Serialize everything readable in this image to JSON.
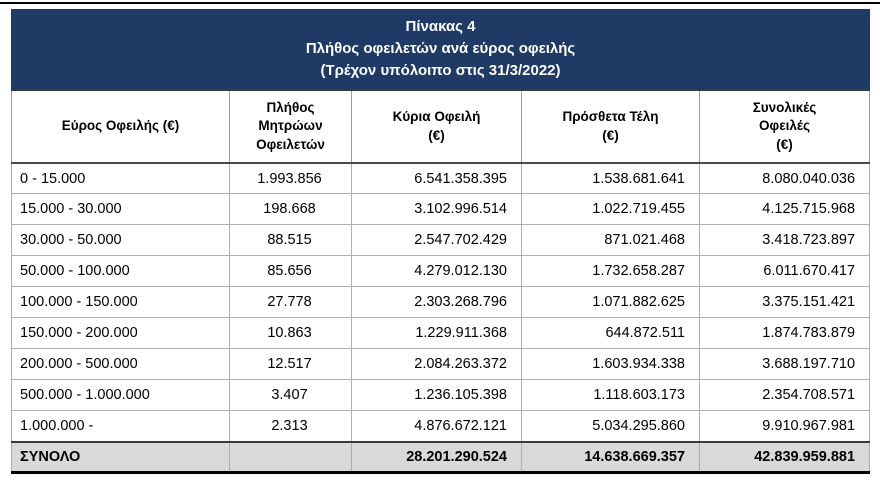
{
  "title": {
    "line1": "Πίνακας 4",
    "line2": "Πλήθος οφειλετών ανά εύρος οφειλής",
    "line3": "(Τρέχον υπόλοιπο στις 31/3/2022)"
  },
  "columns": [
    "Εύρος Οφειλής (€)",
    "Πλήθος\nΜητρώων\nΟφειλετών",
    "Κύρια Οφειλή\n(€)",
    "Πρόσθετα Τέλη\n(€)",
    "Συνολικές\nΟφειλές\n(€)"
  ],
  "rows": [
    [
      "0 - 15.000",
      "1.993.856",
      "6.541.358.395",
      "1.538.681.641",
      "8.080.040.036"
    ],
    [
      "15.000 - 30.000",
      "198.668",
      "3.102.996.514",
      "1.022.719.455",
      "4.125.715.968"
    ],
    [
      "30.000 - 50.000",
      "88.515",
      "2.547.702.429",
      "871.021.468",
      "3.418.723.897"
    ],
    [
      "50.000 - 100.000",
      "85.656",
      "4.279.012.130",
      "1.732.658.287",
      "6.011.670.417"
    ],
    [
      "100.000 - 150.000",
      "27.778",
      "2.303.268.796",
      "1.071.882.625",
      "3.375.151.421"
    ],
    [
      "150.000 - 200.000",
      "10.863",
      "1.229.911.368",
      "644.872.511",
      "1.874.783.879"
    ],
    [
      "200.000 - 500.000",
      "12.517",
      "2.084.263.372",
      "1.603.934.338",
      "3.688.197.710"
    ],
    [
      "500.000 - 1.000.000",
      "3.407",
      "1.236.105.398",
      "1.118.603.173",
      "2.354.708.571"
    ],
    [
      "1.000.000 -",
      "2.313",
      "4.876.672.121",
      "5.034.295.860",
      "9.910.967.981"
    ]
  ],
  "total_row": [
    "ΣΥΝΟΛΟ",
    "",
    "28.201.290.524",
    "14.638.669.357",
    "42.839.959.881"
  ],
  "colors": {
    "header_bg": "#1f3a64",
    "header_text": "#ffffff",
    "total_bg": "#d9d9d9"
  }
}
